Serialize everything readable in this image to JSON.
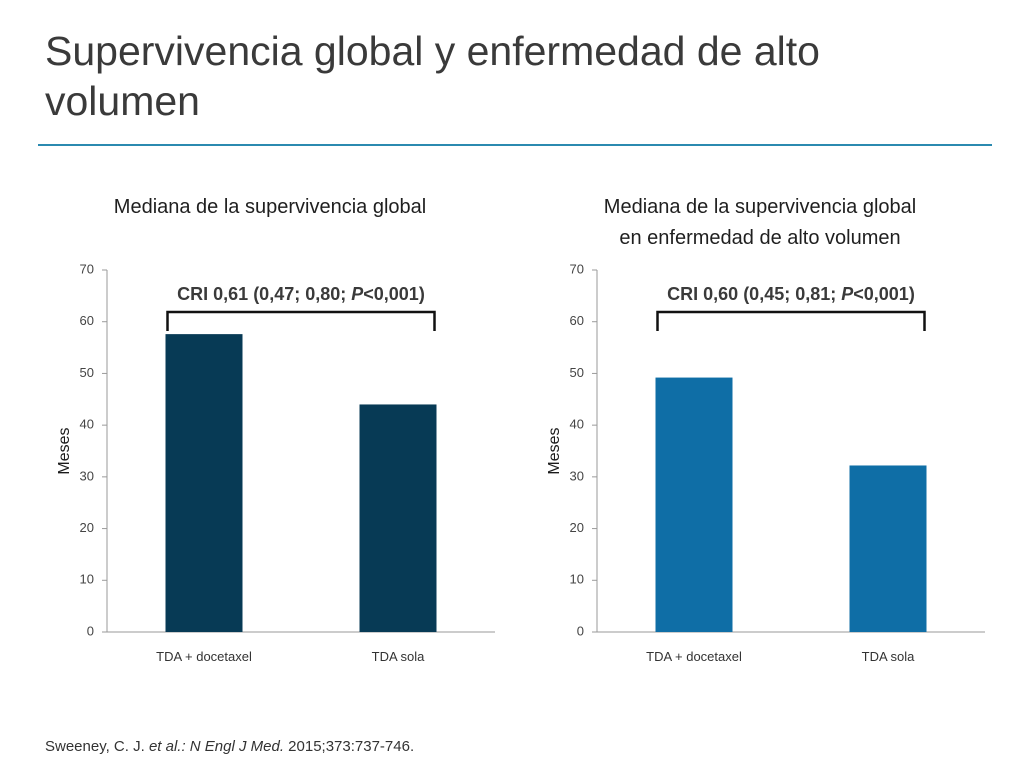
{
  "slide": {
    "title": "Supervivencia global y enfermedad de alto volumen"
  },
  "citation": {
    "authors": "Sweeney, C. J. ",
    "etal": "et al.:",
    "journal": " N Engl J Med.",
    "rest": " 2015;373:737-746."
  },
  "colors": {
    "title_rule": "#2b8ab0",
    "bar_left": "#073a55",
    "bar_right": "#0f6ea6"
  },
  "chart_data": [
    {
      "type": "bar",
      "title_lines": [
        "Mediana de la supervivencia global"
      ],
      "ylabel": "Meses",
      "ylim": [
        0,
        70
      ],
      "yticks": [
        0,
        10,
        20,
        30,
        40,
        50,
        60,
        70
      ],
      "categories": [
        "TDA + docetaxel",
        "TDA sola"
      ],
      "values": [
        57.6,
        44.0
      ],
      "color": "#073a55",
      "grid": false,
      "annotation": {
        "prefix": "CRI 0,61 (0,47; 0,80; ",
        "italic": "P",
        "suffix": "<0,001)"
      }
    },
    {
      "type": "bar",
      "title_lines": [
        "Mediana de la supervivencia global",
        "en enfermedad de alto volumen"
      ],
      "ylabel": "Meses",
      "ylim": [
        0,
        70
      ],
      "yticks": [
        0,
        10,
        20,
        30,
        40,
        50,
        60,
        70
      ],
      "categories": [
        "TDA + docetaxel",
        "TDA sola"
      ],
      "values": [
        49.2,
        32.2
      ],
      "color": "#0f6ea6",
      "grid": false,
      "annotation": {
        "prefix": "CRI 0,60 (0,45; 0,81; ",
        "italic": "P",
        "suffix": "<0,001)"
      }
    }
  ]
}
